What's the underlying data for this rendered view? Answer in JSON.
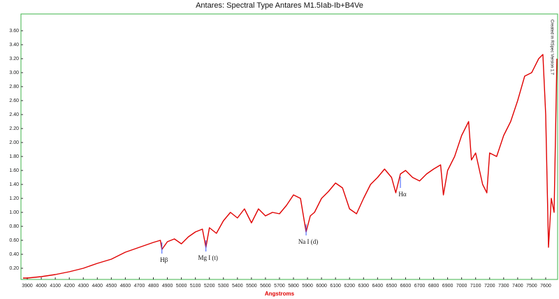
{
  "chart_data": {
    "type": "line",
    "title": "Antares: Spectral Type Antares M1.5Iab-Ib+B4Ve",
    "x_label": "Angstroms",
    "side_note": "Created in RSpec Version 1.7",
    "x": [
      3870,
      3900,
      4000,
      4100,
      4200,
      4300,
      4400,
      4500,
      4600,
      4700,
      4800,
      4850,
      4861,
      4900,
      4950,
      5000,
      5050,
      5100,
      5150,
      5175,
      5200,
      5250,
      5300,
      5350,
      5400,
      5450,
      5500,
      5550,
      5600,
      5650,
      5700,
      5750,
      5800,
      5850,
      5890,
      5920,
      5950,
      6000,
      6050,
      6100,
      6150,
      6200,
      6250,
      6300,
      6350,
      6400,
      6450,
      6500,
      6530,
      6563,
      6600,
      6650,
      6700,
      6750,
      6800,
      6850,
      6870,
      6900,
      6950,
      7000,
      7050,
      7070,
      7100,
      7150,
      7180,
      7200,
      7250,
      7300,
      7350,
      7400,
      7450,
      7500,
      7550,
      7580,
      7600,
      7620,
      7640,
      7660,
      7680
    ],
    "series": [
      {
        "name": "Antares",
        "color": "#e00000",
        "values": [
          0.06,
          0.06,
          0.08,
          0.11,
          0.15,
          0.2,
          0.27,
          0.33,
          0.43,
          0.5,
          0.57,
          0.6,
          0.47,
          0.58,
          0.62,
          0.55,
          0.65,
          0.72,
          0.76,
          0.5,
          0.78,
          0.7,
          0.88,
          1.0,
          0.92,
          1.05,
          0.85,
          1.05,
          0.95,
          1.0,
          0.98,
          1.1,
          1.25,
          1.2,
          0.72,
          0.95,
          1.0,
          1.2,
          1.3,
          1.42,
          1.35,
          1.05,
          0.98,
          1.2,
          1.4,
          1.5,
          1.62,
          1.5,
          1.28,
          1.55,
          1.6,
          1.5,
          1.45,
          1.55,
          1.62,
          1.68,
          1.25,
          1.6,
          1.8,
          2.1,
          2.3,
          1.75,
          1.85,
          1.4,
          1.28,
          1.85,
          1.8,
          2.1,
          2.3,
          2.6,
          2.95,
          3.0,
          3.2,
          3.26,
          2.4,
          0.5,
          1.2,
          1.0,
          3.2
        ]
      }
    ],
    "xlim": [
      3855,
      7685
    ],
    "ylim": [
      0.04,
      3.84
    ],
    "xticks": [
      3900,
      4000,
      4100,
      4200,
      4300,
      4400,
      4500,
      4600,
      4700,
      4800,
      4900,
      5000,
      5100,
      5200,
      5300,
      5400,
      5500,
      5600,
      5700,
      5800,
      5900,
      6000,
      6100,
      6200,
      6300,
      6400,
      6500,
      6600,
      6700,
      6800,
      6900,
      7000,
      7100,
      7200,
      7300,
      7400,
      7500,
      7600
    ],
    "yticks": [
      {
        "value": 0.2,
        "label": "0.20"
      },
      {
        "value": 0.4,
        "label": "0.40"
      },
      {
        "value": 0.6,
        "label": "0.60"
      },
      {
        "value": 0.8,
        "label": "0.80"
      },
      {
        "value": 1.0,
        "label": "1.00"
      },
      {
        "value": 1.2,
        "label": "1.20"
      },
      {
        "value": 1.4,
        "label": "1.40"
      },
      {
        "value": 1.6,
        "label": "1.60"
      },
      {
        "value": 1.8,
        "label": "1.80"
      },
      {
        "value": 2.0,
        "label": "2.00"
      },
      {
        "value": 2.2,
        "label": "2.20"
      },
      {
        "value": 2.4,
        "label": "2.40"
      },
      {
        "value": 2.6,
        "label": "2.60"
      },
      {
        "value": 2.8,
        "label": "2.80"
      },
      {
        "value": 3.0,
        "label": "3.00"
      },
      {
        "value": 3.2,
        "label": "3.20"
      },
      {
        "value": 3.4,
        "label": "3.40"
      },
      {
        "value": 3.6,
        "label": "3.60"
      }
    ],
    "annotations": [
      {
        "text": "Hβ",
        "x": 4861,
        "y": 0.31
      },
      {
        "text": "Mg I (t)",
        "x": 5175,
        "y": 0.34
      },
      {
        "text": "Na I (d)",
        "x": 5890,
        "y": 0.57
      },
      {
        "text": "Hα",
        "x": 6563,
        "y": 1.25
      }
    ]
  }
}
